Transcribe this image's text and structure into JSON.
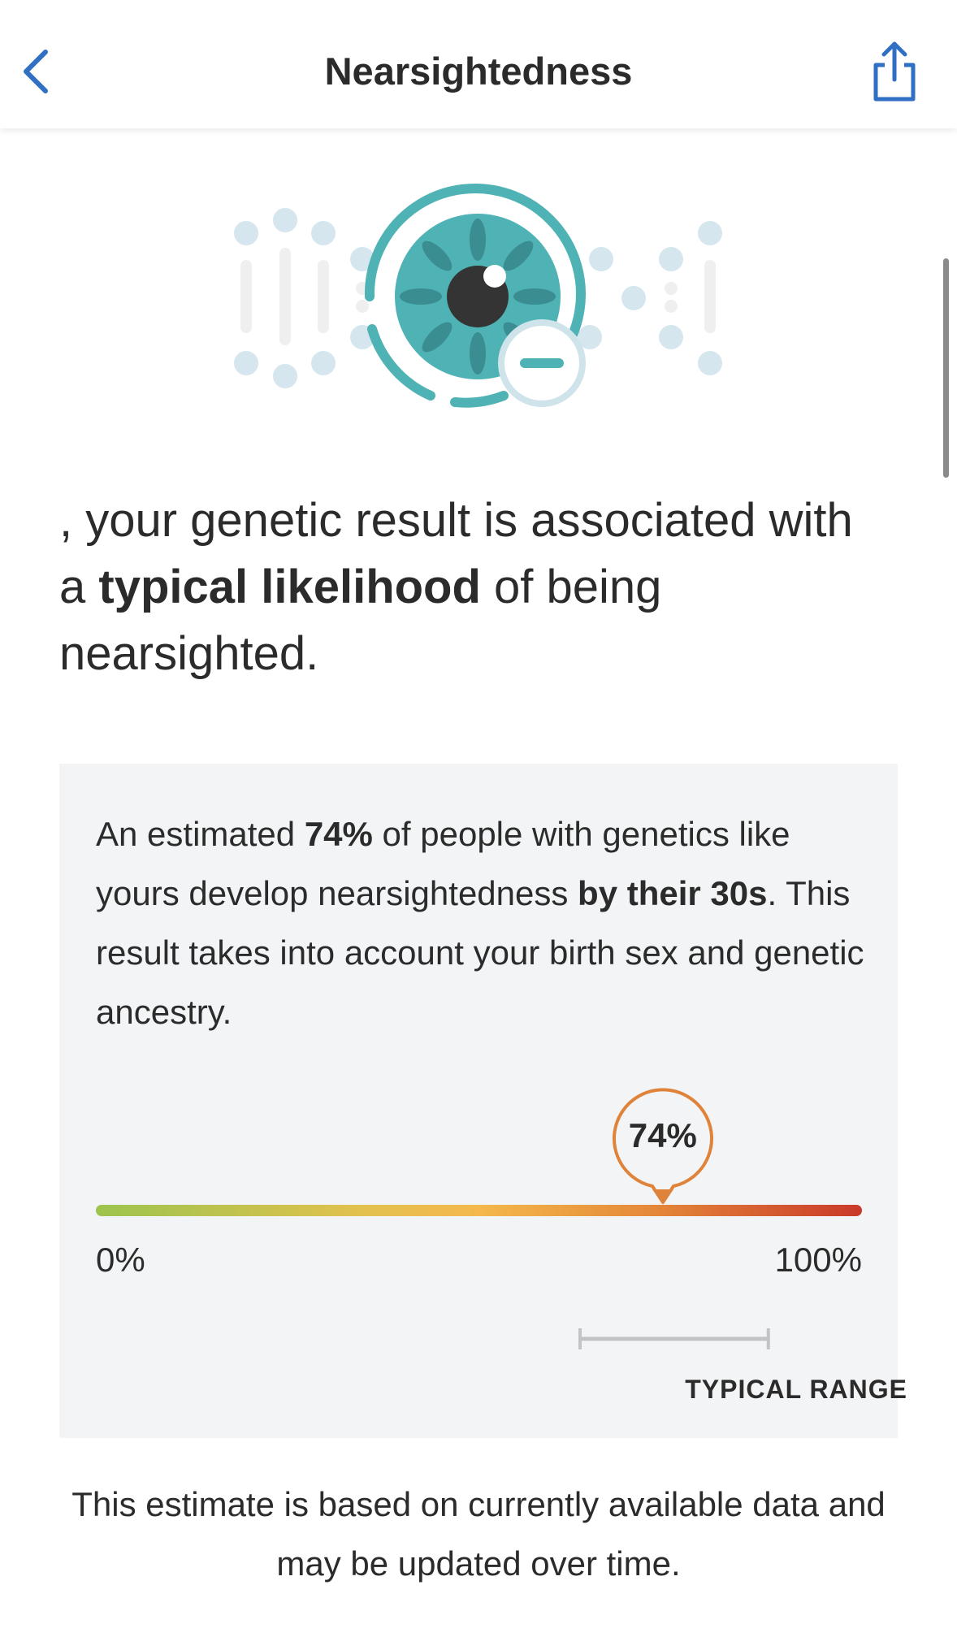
{
  "header": {
    "title": "Nearsightedness",
    "back_icon": "chevron-left-icon",
    "share_icon": "share-icon",
    "accent": "#2f6fc4"
  },
  "hero": {
    "icon": "eye-minus-illustration",
    "color": "#4fb3b5"
  },
  "headline": {
    "part1": ", your genetic result is associated with a ",
    "bold1": "typical likelihood",
    "part2": " of being nearsighted."
  },
  "card": {
    "t1": "An estimated ",
    "b1": "74%",
    "t2": " of people with genetics like yours develop nearsightedness ",
    "b2": "by their 30s",
    "t3": ". This result takes into account your birth sex and genetic ancestry."
  },
  "gauge": {
    "value": 74,
    "value_label": "74%",
    "min_label": "0%",
    "max_label": "100%",
    "typical_range": [
      63,
      88
    ],
    "typical_range_label": "TYPICAL RANGE",
    "marker_color": "#e0833a"
  },
  "footer": {
    "text": "This estimate is based on currently available data and may be updated over time."
  }
}
